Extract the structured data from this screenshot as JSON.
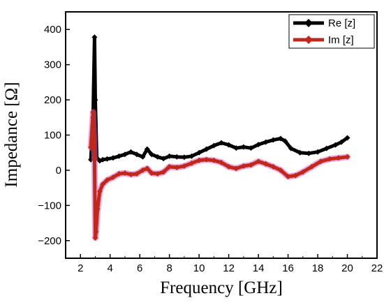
{
  "chart_data": {
    "type": "line",
    "xlabel": "Frequency [GHz]",
    "ylabel": "Impedance [Ω]",
    "xlim": [
      1,
      22
    ],
    "ylim": [
      -250,
      450
    ],
    "xticks": [
      2,
      4,
      6,
      8,
      10,
      12,
      14,
      16,
      18,
      20,
      22
    ],
    "yticks": [
      -200,
      -100,
      0,
      100,
      200,
      300,
      400
    ],
    "ytick_labels": [
      "−200",
      "−100",
      "0",
      "100",
      "200",
      "300",
      "400"
    ],
    "grid": false,
    "legend_position": "top-right",
    "series": [
      {
        "name": "Re [z]",
        "color": "#000000",
        "marker": "diamond",
        "x": [
          2.7,
          2.85,
          2.95,
          3.0,
          3.1,
          3.3,
          3.5,
          3.8,
          4.2,
          4.6,
          5.0,
          5.4,
          5.8,
          6.2,
          6.5,
          6.8,
          7.2,
          7.6,
          8.0,
          8.5,
          9.0,
          9.5,
          10.0,
          10.5,
          11.0,
          11.5,
          12.0,
          12.5,
          13.0,
          13.5,
          14.0,
          14.5,
          15.0,
          15.5,
          15.8,
          16.2,
          16.8,
          17.4,
          18.0,
          18.6,
          19.2,
          19.6,
          20.0
        ],
        "y": [
          30,
          150,
          378,
          200,
          35,
          27,
          30,
          32,
          35,
          40,
          45,
          52,
          45,
          38,
          60,
          45,
          38,
          33,
          40,
          38,
          37,
          40,
          50,
          60,
          70,
          78,
          72,
          63,
          66,
          63,
          73,
          80,
          86,
          90,
          83,
          62,
          50,
          48,
          52,
          62,
          72,
          80,
          92
        ]
      },
      {
        "name": "Im [z]",
        "color": "#c0281c",
        "marker": "diamond",
        "x": [
          2.7,
          2.85,
          2.95,
          3.0,
          3.05,
          3.15,
          3.3,
          3.5,
          3.8,
          4.2,
          4.6,
          5.0,
          5.4,
          5.8,
          6.2,
          6.5,
          6.8,
          7.2,
          7.6,
          8.0,
          8.5,
          9.0,
          9.5,
          10.0,
          10.5,
          11.0,
          11.5,
          12.0,
          12.5,
          13.0,
          13.5,
          14.0,
          14.5,
          15.0,
          15.5,
          16.0,
          16.5,
          17.0,
          17.6,
          18.2,
          18.8,
          19.4,
          20.0
        ],
        "y": [
          65,
          165,
          30,
          -192,
          -175,
          -110,
          -60,
          -40,
          -28,
          -20,
          -10,
          -8,
          -12,
          -10,
          0,
          5,
          -8,
          -10,
          -5,
          10,
          8,
          12,
          20,
          28,
          30,
          28,
          22,
          10,
          5,
          12,
          15,
          25,
          18,
          10,
          0,
          -18,
          -15,
          -5,
          10,
          25,
          32,
          35,
          38
        ]
      }
    ]
  }
}
